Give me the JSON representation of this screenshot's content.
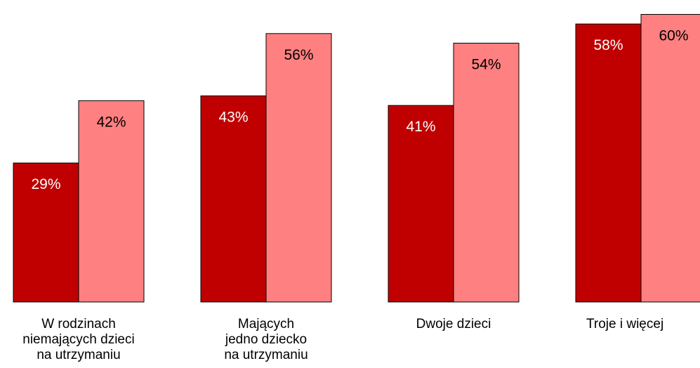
{
  "chart_data": {
    "type": "bar",
    "categories": [
      "W rodzinach\nniemających dzieci\nna utrzymaniu",
      "Mających\njedno dziecko\nna utrzymaniu",
      "Dwoje dzieci",
      "Troje i więcej"
    ],
    "series": [
      {
        "color": "#c00000",
        "values": [
          29,
          43,
          41,
          58
        ]
      },
      {
        "color": "#ff8080",
        "values": [
          42,
          56,
          54,
          60
        ]
      }
    ],
    "value_suffix": "%",
    "ylim": [
      0,
      63
    ],
    "grid": false,
    "legend": "none"
  }
}
